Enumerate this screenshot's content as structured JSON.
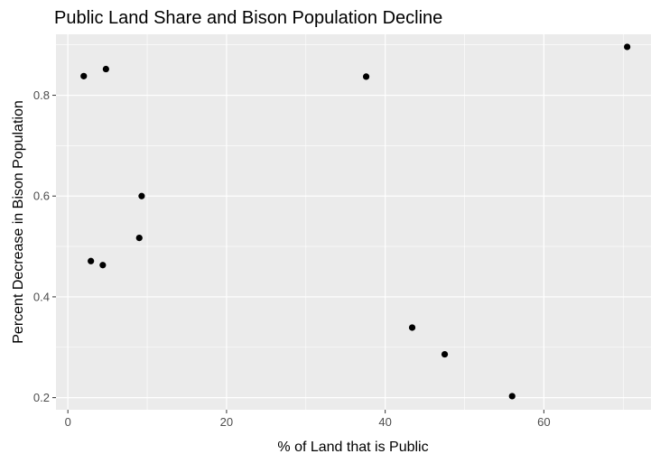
{
  "chart_data": {
    "type": "scatter",
    "title": "Public Land Share and Bison Population Decline",
    "xlabel": "% of Land that is Public",
    "ylabel": "Percent Decrease in Bison Population",
    "xlim": [
      -1.5,
      73.5
    ],
    "ylim": [
      0.176,
      0.921
    ],
    "x_ticks": [
      0,
      20,
      40,
      60
    ],
    "x_minor": [
      10,
      30,
      50,
      70
    ],
    "y_ticks": [
      0.2,
      0.4,
      0.6,
      0.8
    ],
    "y_minor": [
      0.3,
      0.5,
      0.7,
      0.9
    ],
    "x_tick_labels": [
      "0",
      "20",
      "40",
      "60"
    ],
    "y_tick_labels": [
      "0.2",
      "0.4",
      "0.6",
      "0.8"
    ],
    "grid": true,
    "colors": {
      "panel": "#ebebeb",
      "grid": "#ffffff",
      "point": "#000000"
    },
    "points": [
      {
        "x": 2.0,
        "y": 0.838
      },
      {
        "x": 4.8,
        "y": 0.852
      },
      {
        "x": 9.3,
        "y": 0.6
      },
      {
        "x": 9.0,
        "y": 0.517
      },
      {
        "x": 2.9,
        "y": 0.471
      },
      {
        "x": 4.4,
        "y": 0.463
      },
      {
        "x": 37.6,
        "y": 0.837
      },
      {
        "x": 43.4,
        "y": 0.339
      },
      {
        "x": 47.5,
        "y": 0.286
      },
      {
        "x": 56.0,
        "y": 0.203
      },
      {
        "x": 70.5,
        "y": 0.896
      }
    ]
  }
}
